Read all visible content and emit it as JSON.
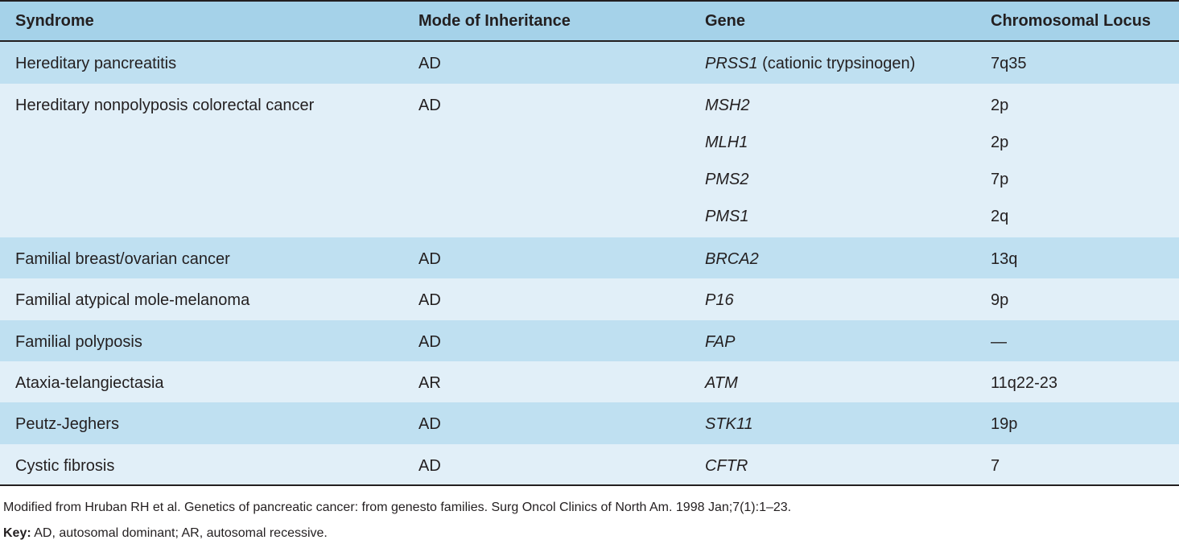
{
  "table": {
    "headers": [
      "Syndrome",
      "Mode of Inheritance",
      "Gene",
      "Chromosomal Locus"
    ],
    "rows": [
      {
        "syndrome": "Hereditary pancreatitis",
        "mode": "AD",
        "genes": [
          {
            "name": "PRSS1",
            "suffix": " (cationic trypsinogen)",
            "locus": "7q35"
          }
        ]
      },
      {
        "syndrome": "Hereditary nonpolyposis colorectal cancer",
        "mode": "AD",
        "genes": [
          {
            "name": "MSH2",
            "suffix": "",
            "locus": "2p"
          },
          {
            "name": "MLH1",
            "suffix": "",
            "locus": "2p"
          },
          {
            "name": "PMS2",
            "suffix": "",
            "locus": "7p"
          },
          {
            "name": "PMS1",
            "suffix": "",
            "locus": "2q"
          }
        ]
      },
      {
        "syndrome": "Familial breast/ovarian cancer",
        "mode": "AD",
        "genes": [
          {
            "name": "BRCA2",
            "suffix": "",
            "locus": "13q"
          }
        ]
      },
      {
        "syndrome": "Familial atypical mole-melanoma",
        "mode": "AD",
        "genes": [
          {
            "name": "P16",
            "suffix": "",
            "locus": "9p"
          }
        ]
      },
      {
        "syndrome": "Familial polyposis",
        "mode": "AD",
        "genes": [
          {
            "name": "FAP",
            "suffix": "",
            "locus": "—"
          }
        ]
      },
      {
        "syndrome": "Ataxia-telangiectasia",
        "mode": "AR",
        "genes": [
          {
            "name": "ATM",
            "suffix": "",
            "locus": "11q22-23"
          }
        ]
      },
      {
        "syndrome": "Peutz-Jeghers",
        "mode": "AD",
        "genes": [
          {
            "name": "STK11",
            "suffix": "",
            "locus": "19p"
          }
        ]
      },
      {
        "syndrome": "Cystic fibrosis",
        "mode": "AD",
        "genes": [
          {
            "name": "CFTR",
            "suffix": "",
            "locus": "7"
          }
        ]
      }
    ]
  },
  "footnote": {
    "source": "Modified from Hruban RH et al. Genetics of pancreatic cancer: from genesto families. Surg Oncol Clinics of North Am. 1998 Jan;7(1):1–23.",
    "key_label": "Key:",
    "key_text": " AD, autosomal dominant; AR, autosomal recessive."
  }
}
